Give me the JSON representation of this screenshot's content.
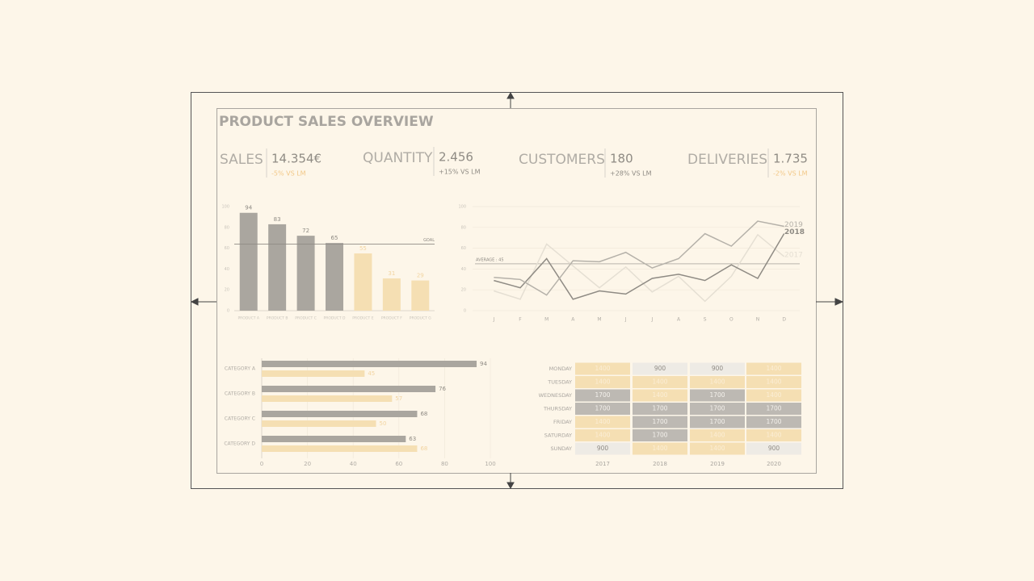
{
  "title": "PRODUCT SALES OVERVIEW",
  "kpis": [
    {
      "label": "SALES",
      "value": "14.354€",
      "delta": "-5% VS LM",
      "delta_color": "#f2c887"
    },
    {
      "label": "QUANTITY",
      "value": "2.456",
      "delta": "+15% VS LM",
      "delta_color": "#8f8b84"
    },
    {
      "label": "CUSTOMERS",
      "value": "180",
      "delta": "+28% VS LM",
      "delta_color": "#8f8b84"
    },
    {
      "label": "DELIVERIES",
      "value": "1.735",
      "delta": "-2% VS LM",
      "delta_color": "#f2c887"
    }
  ],
  "chart_data": [
    {
      "type": "bar",
      "categories": [
        "PRODUCT A",
        "PRODUCT B",
        "PRODUCT C",
        "PRODUCT D",
        "PRODUCT E",
        "PRODUCT F",
        "PRODUCT G"
      ],
      "values": [
        94,
        83,
        72,
        65,
        55,
        31,
        29
      ],
      "colors": [
        "#aaa69f",
        "#aaa69f",
        "#aaa69f",
        "#aaa69f",
        "#f5dfb3",
        "#f5dfb3",
        "#f5dfb3"
      ],
      "label_colors": [
        "#8f8b84",
        "#8f8b84",
        "#8f8b84",
        "#8f8b84",
        "#f2d4a0",
        "#f2d4a0",
        "#f2d4a0"
      ],
      "goal": {
        "value": 64,
        "label": "GOAL"
      },
      "ylim": [
        0,
        100
      ],
      "yticks": [
        0,
        20,
        40,
        60,
        80,
        100
      ],
      "grid": false
    },
    {
      "type": "line",
      "categories": [
        "J",
        "F",
        "M",
        "A",
        "M",
        "J",
        "J",
        "A",
        "S",
        "O",
        "N",
        "D"
      ],
      "series": [
        {
          "name": "2019",
          "color": "#b5b1a9",
          "values": [
            32,
            30,
            15,
            48,
            47,
            56,
            41,
            50,
            74,
            62,
            86,
            81
          ]
        },
        {
          "name": "2018",
          "color": "#8f8b84",
          "values": [
            29,
            22,
            50,
            11,
            19,
            16,
            31,
            35,
            29,
            44,
            31,
            74
          ]
        },
        {
          "name": "2017",
          "color": "#e5dfd3",
          "values": [
            19,
            11,
            64,
            43,
            22,
            42,
            18,
            33,
            9,
            33,
            73,
            52
          ]
        }
      ],
      "average": {
        "value": 45,
        "label": "AVERAGE : 45"
      },
      "ylim": [
        0,
        100
      ],
      "yticks": [
        0,
        20,
        40,
        60,
        80,
        100
      ],
      "grid": true
    },
    {
      "type": "hbar",
      "categories": [
        "CATEGORY A",
        "CATEGORY B",
        "CATEGORY C",
        "CATEGORY D"
      ],
      "series": [
        {
          "color": "#aaa69f",
          "label_color": "#8f8b84",
          "values": [
            94,
            76,
            68,
            63
          ]
        },
        {
          "color": "#f5dfb3",
          "label_color": "#f2d4a0",
          "values": [
            45,
            57,
            50,
            68
          ]
        }
      ],
      "xlim": [
        0,
        100
      ],
      "xticks": [
        0,
        20,
        40,
        60,
        80,
        100
      ],
      "grid": true
    }
  ],
  "table": {
    "columns": [
      "2017",
      "2018",
      "2019",
      "2020"
    ],
    "rows": [
      {
        "label": "MONDAY",
        "values": [
          1400,
          900,
          900,
          1400
        ]
      },
      {
        "label": "TUESDAY",
        "values": [
          1400,
          1400,
          1400,
          1400
        ]
      },
      {
        "label": "WEDNESDAY",
        "values": [
          1700,
          1400,
          1700,
          1400
        ]
      },
      {
        "label": "THURSDAY",
        "values": [
          1700,
          1700,
          1700,
          1700
        ]
      },
      {
        "label": "FRIDAY",
        "values": [
          1400,
          1700,
          1700,
          1700
        ]
      },
      {
        "label": "SATURDAY",
        "values": [
          1400,
          1700,
          1400,
          1400
        ]
      },
      {
        "label": "SUNDAY",
        "values": [
          900,
          1400,
          1400,
          900
        ]
      }
    ],
    "color_scale": [
      {
        "value": 900,
        "fill": "#eeebe5",
        "text": "#8f8b84"
      },
      {
        "value": 1400,
        "fill": "#f5dfb3",
        "text": "#fbeed6"
      },
      {
        "value": 1700,
        "fill": "#bdb9b3",
        "text": "#f4f1ec"
      }
    ]
  }
}
